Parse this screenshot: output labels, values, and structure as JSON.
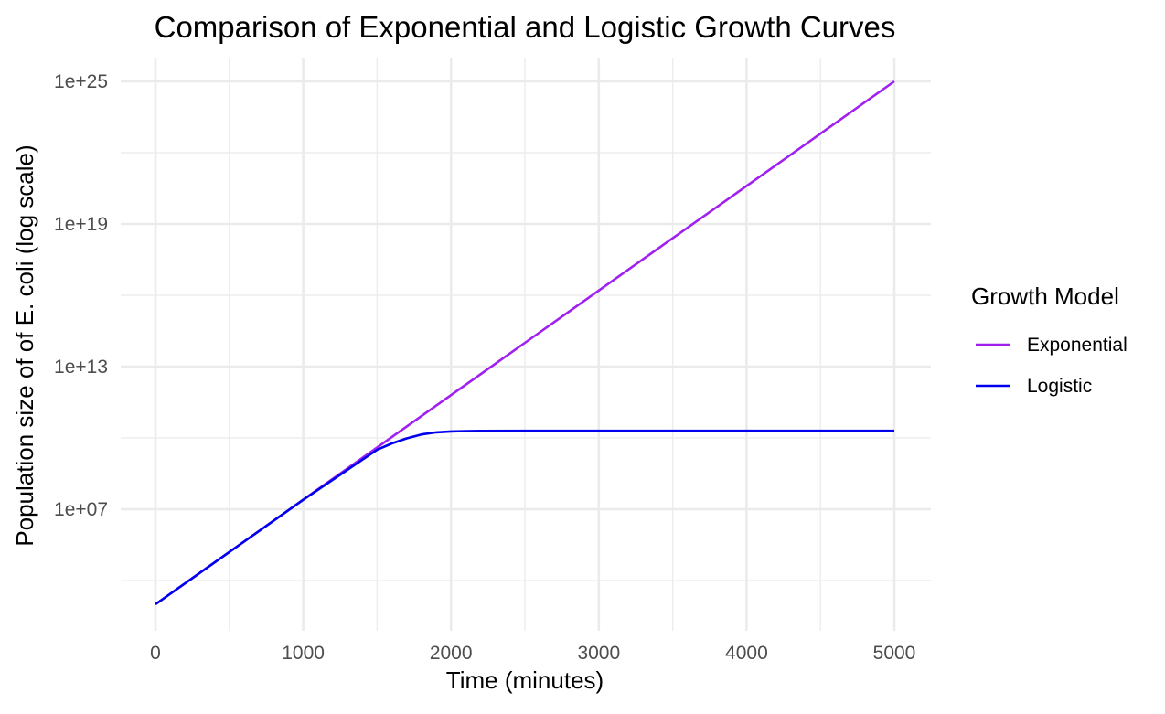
{
  "chart_data": {
    "type": "line",
    "title": "Comparison of Exponential and Logistic Growth Curves",
    "xlabel": "Time (minutes)",
    "ylabel": "Population size of of E. coli (log scale)",
    "x_scale": "linear",
    "y_scale": "log10",
    "xlim": [
      0,
      5000
    ],
    "ylim": [
      10.0,
      1e+25
    ],
    "x_ticks": [
      0,
      1000,
      2000,
      3000,
      4000,
      5000
    ],
    "x_tick_labels": [
      "0",
      "1000",
      "2000",
      "3000",
      "4000",
      "5000"
    ],
    "y_ticks": [
      10000000.0,
      10000000000000.0,
      1e+19,
      1e+25
    ],
    "y_tick_labels": [
      "1e+07",
      "1e+13",
      "1e+19",
      "1e+25"
    ],
    "grid": true,
    "legend": {
      "title": "Growth Model",
      "placement": "right"
    },
    "series": [
      {
        "name": "Exponential",
        "color": "#a020f0",
        "x": [
          0,
          500,
          1000,
          1500,
          2000,
          2500,
          3000,
          3500,
          4000,
          4500,
          5000
        ],
        "y": [
          1000.0,
          158000.0,
          25100000.0,
          3980000000.0,
          631000000000.0,
          100000000000000.0,
          1.58e+16,
          2.51e+18,
          3.98e+20,
          6.31e+22,
          1e+25
        ]
      },
      {
        "name": "Logistic",
        "color": "#0000ee",
        "x": [
          0,
          500,
          1000,
          1500,
          1600,
          1700,
          1800,
          1900,
          2000,
          2100,
          2200,
          2500,
          3000,
          3500,
          4000,
          4500,
          5000
        ],
        "y": [
          1000.0,
          158000.0,
          24900000.0,
          3200000000.0,
          5900000000.0,
          9600000000.0,
          14000000000.0,
          17200000000.0,
          18800000000.0,
          19500000000.0,
          19800000000.0,
          20000000000.0,
          20000000000.0,
          20000000000.0,
          20000000000.0,
          20000000000.0,
          20000000000.0
        ]
      }
    ]
  }
}
